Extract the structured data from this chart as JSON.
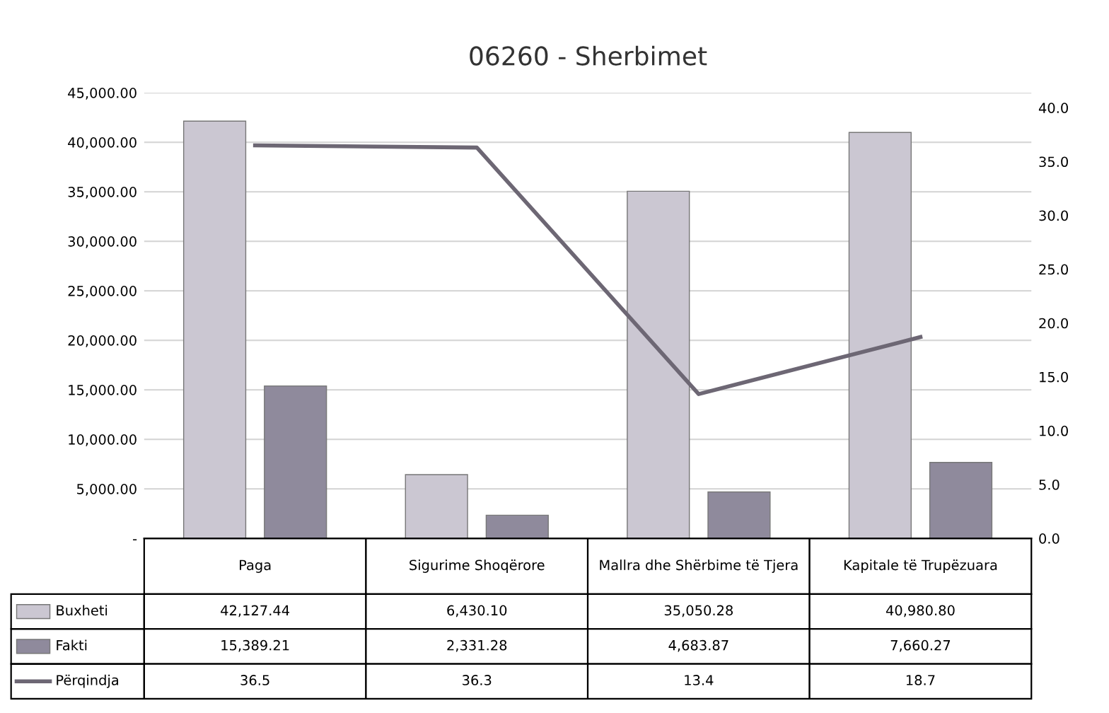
{
  "chart_data": {
    "type": "bar",
    "title": "06260 - Sherbimet",
    "categories": [
      "Paga",
      "Sigurime Shoqërore",
      "Mallra dhe Shërbime të Tjera",
      "Kapitale të Trupëzuara"
    ],
    "series": [
      {
        "name": "Buxheti",
        "color": "#cbc7d2",
        "values": [
          42127.44,
          6430.1,
          35050.28,
          40980.8
        ],
        "value_labels": [
          "42,127.44",
          "6,430.10",
          "35,050.28",
          "40,980.80"
        ]
      },
      {
        "name": "Fakti",
        "color": "#8f8a9c",
        "values": [
          15389.21,
          2331.28,
          4683.87,
          7660.27
        ],
        "value_labels": [
          "15,389.21",
          "2,331.28",
          "4,683.87",
          "7,660.27"
        ]
      },
      {
        "name": "Përqindja",
        "type": "line",
        "axis": "y2",
        "color": "#6d6774",
        "values": [
          36.5,
          36.3,
          13.4,
          18.7
        ],
        "value_labels": [
          "36.5",
          "36.3",
          "13.4",
          "18.7"
        ]
      }
    ],
    "ylim": [
      0,
      45000
    ],
    "yticks": [
      {
        "value": 0,
        "label": "-"
      },
      {
        "value": 5000,
        "label": "5,000.00"
      },
      {
        "value": 10000,
        "label": "10,000.00"
      },
      {
        "value": 15000,
        "label": "15,000.00"
      },
      {
        "value": 20000,
        "label": "20,000.00"
      },
      {
        "value": 25000,
        "label": "25,000.00"
      },
      {
        "value": 30000,
        "label": "30,000.00"
      },
      {
        "value": 35000,
        "label": "35,000.00"
      },
      {
        "value": 40000,
        "label": "40,000.00"
      },
      {
        "value": 45000,
        "label": "45,000.00"
      }
    ],
    "y2lim": [
      0,
      41.4
    ],
    "y2ticks": [
      {
        "value": 0,
        "label": "0.0"
      },
      {
        "value": 5,
        "label": "5.0"
      },
      {
        "value": 10,
        "label": "10.0"
      },
      {
        "value": 15,
        "label": "15.0"
      },
      {
        "value": 20,
        "label": "20.0"
      },
      {
        "value": 25,
        "label": "25.0"
      },
      {
        "value": 30,
        "label": "30.0"
      },
      {
        "value": 35,
        "label": "35.0"
      },
      {
        "value": 40,
        "label": "40.0"
      }
    ],
    "grid": "y",
    "data_labels": true,
    "legend": "bottom left"
  }
}
